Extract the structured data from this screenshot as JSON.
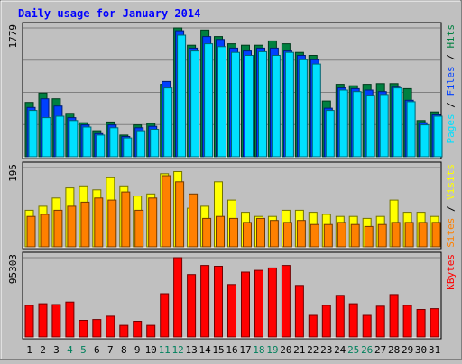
{
  "title": "Daily usage for January 2014",
  "colors": {
    "background": "#c0c0c0",
    "title": "#0000ff",
    "grid": "#808080",
    "hits": "#008040",
    "files": "#0040ff",
    "pages": "#00e0ff",
    "visits": "#ffff00",
    "sites": "#ff8000",
    "kbytes": "#ff0000",
    "weekend_label": "#00805c"
  },
  "chart_data": [
    {
      "type": "bar",
      "panel": "hits-files-pages",
      "categories": [
        "1",
        "2",
        "3",
        "4",
        "5",
        "6",
        "7",
        "8",
        "9",
        "10",
        "11",
        "12",
        "13",
        "14",
        "15",
        "16",
        "17",
        "18",
        "19",
        "20",
        "21",
        "22",
        "23",
        "24",
        "25",
        "26",
        "27",
        "28",
        "29",
        "30",
        "31"
      ],
      "weekend_days": [
        "4",
        "5",
        "11",
        "12",
        "18",
        "19",
        "25",
        "26"
      ],
      "ymax_label": "1779",
      "ylim": [
        0,
        1779
      ],
      "legend": [
        {
          "text": "Pages",
          "color": "#00e0ff"
        },
        {
          "text": "Files",
          "color": "#0040ff"
        },
        {
          "text": "Hits",
          "color": "#008040"
        }
      ],
      "series": [
        {
          "name": "Hits",
          "values": [
            750,
            880,
            800,
            600,
            470,
            360,
            480,
            300,
            440,
            460,
            1000,
            1779,
            1540,
            1750,
            1660,
            1560,
            1540,
            1540,
            1600,
            1560,
            1440,
            1400,
            770,
            1000,
            980,
            1000,
            1010,
            1010,
            940,
            500,
            620
          ]
        },
        {
          "name": "Files",
          "values": [
            680,
            800,
            700,
            540,
            440,
            320,
            440,
            280,
            400,
            420,
            1040,
            1740,
            1500,
            1660,
            1620,
            1500,
            1460,
            1500,
            1500,
            1460,
            1400,
            1340,
            670,
            950,
            940,
            920,
            900,
            960,
            780,
            470,
            580
          ]
        },
        {
          "name": "Pages",
          "values": [
            640,
            540,
            560,
            500,
            410,
            300,
            400,
            260,
            360,
            380,
            950,
            1680,
            1460,
            1560,
            1520,
            1440,
            1400,
            1450,
            1400,
            1440,
            1340,
            1280,
            640,
            920,
            900,
            850,
            860,
            950,
            760,
            440,
            560
          ]
        }
      ]
    },
    {
      "type": "bar",
      "panel": "visits-sites",
      "categories": [
        "1",
        "2",
        "3",
        "4",
        "5",
        "6",
        "7",
        "8",
        "9",
        "10",
        "11",
        "12",
        "13",
        "14",
        "15",
        "16",
        "17",
        "18",
        "19",
        "20",
        "21",
        "22",
        "23",
        "24",
        "25",
        "26",
        "27",
        "28",
        "29",
        "30",
        "31"
      ],
      "ymax_label": "195",
      "ylim": [
        0,
        195
      ],
      "legend": [
        {
          "text": "Sites",
          "color": "#ff8000"
        },
        {
          "text": "Visits",
          "color": "#ffff00"
        }
      ],
      "series": [
        {
          "name": "Visits",
          "values": [
            90,
            100,
            120,
            145,
            150,
            140,
            170,
            150,
            125,
            130,
            180,
            185,
            95,
            100,
            160,
            115,
            85,
            75,
            75,
            90,
            90,
            85,
            80,
            75,
            75,
            70,
            75,
            115,
            85,
            85,
            75
          ]
        },
        {
          "name": "Sites",
          "values": [
            75,
            80,
            90,
            100,
            110,
            120,
            115,
            135,
            90,
            120,
            175,
            160,
            130,
            70,
            75,
            70,
            60,
            70,
            65,
            60,
            65,
            55,
            55,
            60,
            55,
            50,
            55,
            60,
            60,
            60,
            60
          ]
        }
      ]
    },
    {
      "type": "bar",
      "panel": "kbytes",
      "categories": [
        "1",
        "2",
        "3",
        "4",
        "5",
        "6",
        "7",
        "8",
        "9",
        "10",
        "11",
        "12",
        "13",
        "14",
        "15",
        "16",
        "17",
        "18",
        "19",
        "20",
        "21",
        "22",
        "23",
        "24",
        "25",
        "26",
        "27",
        "28",
        "29",
        "30",
        "31"
      ],
      "ymax_label": "95303",
      "ylim": [
        0,
        95303
      ],
      "legend": [
        {
          "text": "KBytes",
          "color": "#ff0000"
        }
      ],
      "series": [
        {
          "name": "KBytes",
          "values": [
            38000,
            40000,
            39000,
            42000,
            20000,
            21000,
            25000,
            14000,
            19000,
            14000,
            52000,
            95303,
            75000,
            86000,
            85000,
            63000,
            78000,
            80000,
            83000,
            86000,
            62000,
            26000,
            38000,
            50000,
            40000,
            26000,
            37000,
            51000,
            38000,
            33000,
            34000
          ]
        }
      ]
    }
  ]
}
